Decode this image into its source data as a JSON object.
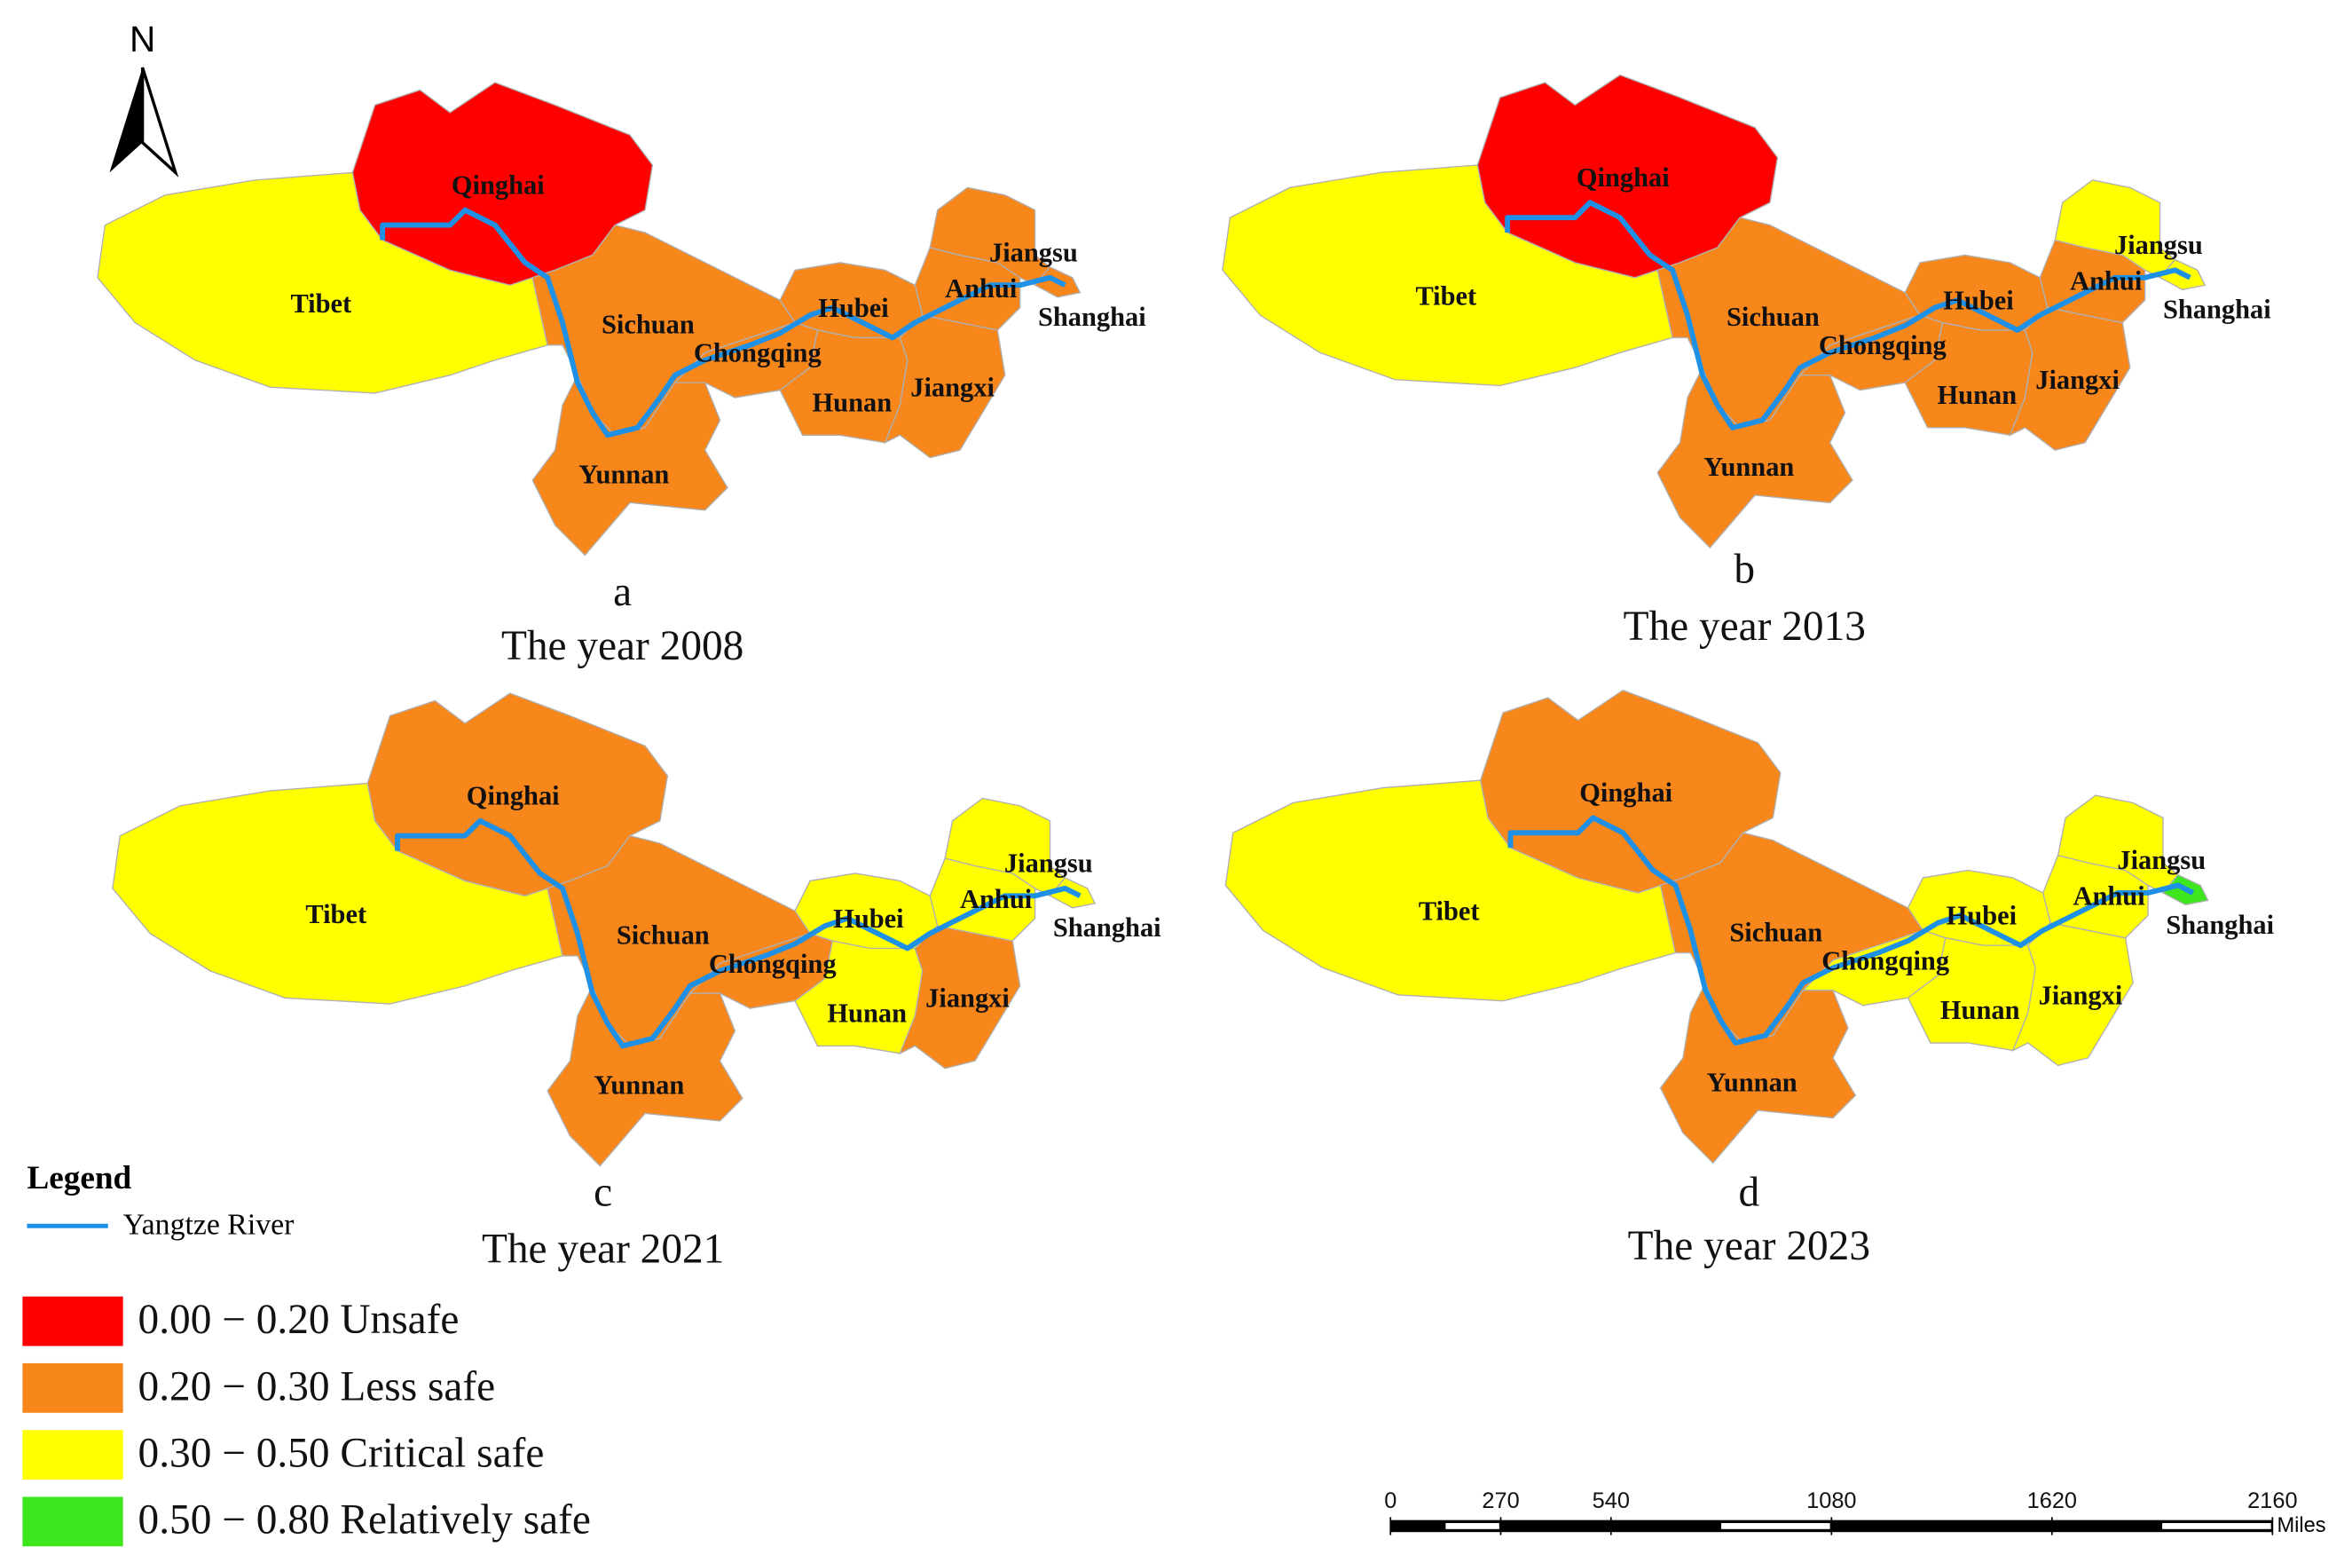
{
  "north_arrow": "N",
  "panels": [
    {
      "letter": "a",
      "title": "The year 2008",
      "provinces": [
        {
          "name": "Tibet",
          "class": 2
        },
        {
          "name": "Qinghai",
          "class": 0
        },
        {
          "name": "Sichuan",
          "class": 1
        },
        {
          "name": "Chongqing",
          "class": 1
        },
        {
          "name": "Yunnan",
          "class": 1
        },
        {
          "name": "Hubei",
          "class": 1
        },
        {
          "name": "Hunan",
          "class": 1
        },
        {
          "name": "Jiangxi",
          "class": 1
        },
        {
          "name": "Anhui",
          "class": 1
        },
        {
          "name": "Jiangsu",
          "class": 1
        },
        {
          "name": "Shanghai",
          "class": 1
        }
      ]
    },
    {
      "letter": "b",
      "title": "The year 2013",
      "provinces": [
        {
          "name": "Tibet",
          "class": 2
        },
        {
          "name": "Qinghai",
          "class": 0
        },
        {
          "name": "Sichuan",
          "class": 1
        },
        {
          "name": "Chongqing",
          "class": 1
        },
        {
          "name": "Yunnan",
          "class": 1
        },
        {
          "name": "Hubei",
          "class": 1
        },
        {
          "name": "Hunan",
          "class": 1
        },
        {
          "name": "Jiangxi",
          "class": 1
        },
        {
          "name": "Anhui",
          "class": 1
        },
        {
          "name": "Jiangsu",
          "class": 2
        },
        {
          "name": "Shanghai",
          "class": 2
        }
      ]
    },
    {
      "letter": "c",
      "title": "The year 2021",
      "provinces": [
        {
          "name": "Tibet",
          "class": 2
        },
        {
          "name": "Qinghai",
          "class": 1
        },
        {
          "name": "Sichuan",
          "class": 1
        },
        {
          "name": "Chongqing",
          "class": 1
        },
        {
          "name": "Yunnan",
          "class": 1
        },
        {
          "name": "Hubei",
          "class": 2
        },
        {
          "name": "Hunan",
          "class": 2
        },
        {
          "name": "Jiangxi",
          "class": 1
        },
        {
          "name": "Anhui",
          "class": 2
        },
        {
          "name": "Jiangsu",
          "class": 2
        },
        {
          "name": "Shanghai",
          "class": 2
        }
      ]
    },
    {
      "letter": "d",
      "title": "The year 2023",
      "provinces": [
        {
          "name": "Tibet",
          "class": 2
        },
        {
          "name": "Qinghai",
          "class": 1
        },
        {
          "name": "Sichuan",
          "class": 1
        },
        {
          "name": "Chongqing",
          "class": 2
        },
        {
          "name": "Yunnan",
          "class": 1
        },
        {
          "name": "Hubei",
          "class": 2
        },
        {
          "name": "Hunan",
          "class": 2
        },
        {
          "name": "Jiangxi",
          "class": 2
        },
        {
          "name": "Anhui",
          "class": 2
        },
        {
          "name": "Jiangsu",
          "class": 2
        },
        {
          "name": "Shanghai",
          "class": 3
        }
      ]
    }
  ],
  "legend": {
    "title": "Legend",
    "river": "Yangtze River",
    "river_color": "#1e90e6",
    "classes": [
      {
        "label": "0.00 − 0.20 Unsafe",
        "color": "#ff0000"
      },
      {
        "label": "0.20 − 0.30 Less safe",
        "color": "#f7861b"
      },
      {
        "label": "0.30 − 0.50 Critical safe",
        "color": "#ffff00"
      },
      {
        "label": "0.50 − 0.80 Relatively safe",
        "color": "#3ee61e"
      }
    ]
  },
  "scale_bar": {
    "ticks": [
      0,
      270,
      540,
      1080,
      1620,
      2160
    ],
    "unit": "Miles"
  }
}
